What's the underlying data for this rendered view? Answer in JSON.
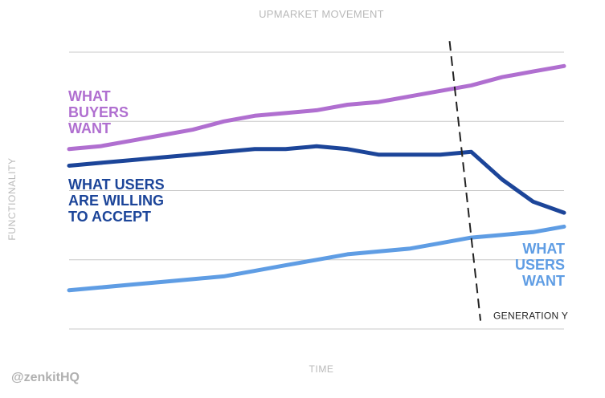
{
  "chart_data": {
    "type": "line",
    "title": "UPMARKET MOVEMENT",
    "xlabel": "TIME",
    "ylabel": "FUNCTIONALITY",
    "ylim": [
      0,
      100
    ],
    "grid": true,
    "x": [
      0,
      1,
      2,
      3,
      4,
      5,
      6,
      7,
      8,
      9,
      10,
      11,
      12,
      13,
      14,
      15,
      16
    ],
    "series": [
      {
        "name": "WHAT BUYERS WANT",
        "label_lines": [
          "WHAT",
          "BUYERS",
          "WANT"
        ],
        "color": "#b06fd0",
        "values": [
          65,
          66,
          68,
          70,
          72,
          75,
          77,
          78,
          79,
          81,
          82,
          84,
          86,
          88,
          91,
          93,
          95
        ]
      },
      {
        "name": "WHAT USERS ARE WILLING TO ACCEPT",
        "label_lines": [
          "WHAT USERS",
          "ARE WILLING",
          "TO ACCEPT"
        ],
        "color": "#1c4599",
        "values": [
          59,
          60,
          61,
          62,
          63,
          64,
          65,
          65,
          66,
          65,
          63,
          63,
          63,
          64,
          54,
          46,
          42
        ]
      },
      {
        "name": "WHAT USERS WANT",
        "label_lines": [
          "WHAT",
          "USERS",
          "WANT"
        ],
        "color": "#5f9de4",
        "values": [
          14,
          15,
          16,
          17,
          18,
          19,
          21,
          23,
          25,
          27,
          28,
          29,
          31,
          33,
          34,
          35,
          37
        ]
      }
    ],
    "annotations": [
      {
        "text": "GENERATION Y",
        "type": "dashed-line",
        "color": "#222222",
        "x1": 12.3,
        "y1": 104,
        "x2": 13.3,
        "y2": 3
      }
    ]
  },
  "watermark": "@zenkitHQ",
  "colors": {
    "grid": "#c8c8c8",
    "muted_text": "#b9b9b9"
  }
}
